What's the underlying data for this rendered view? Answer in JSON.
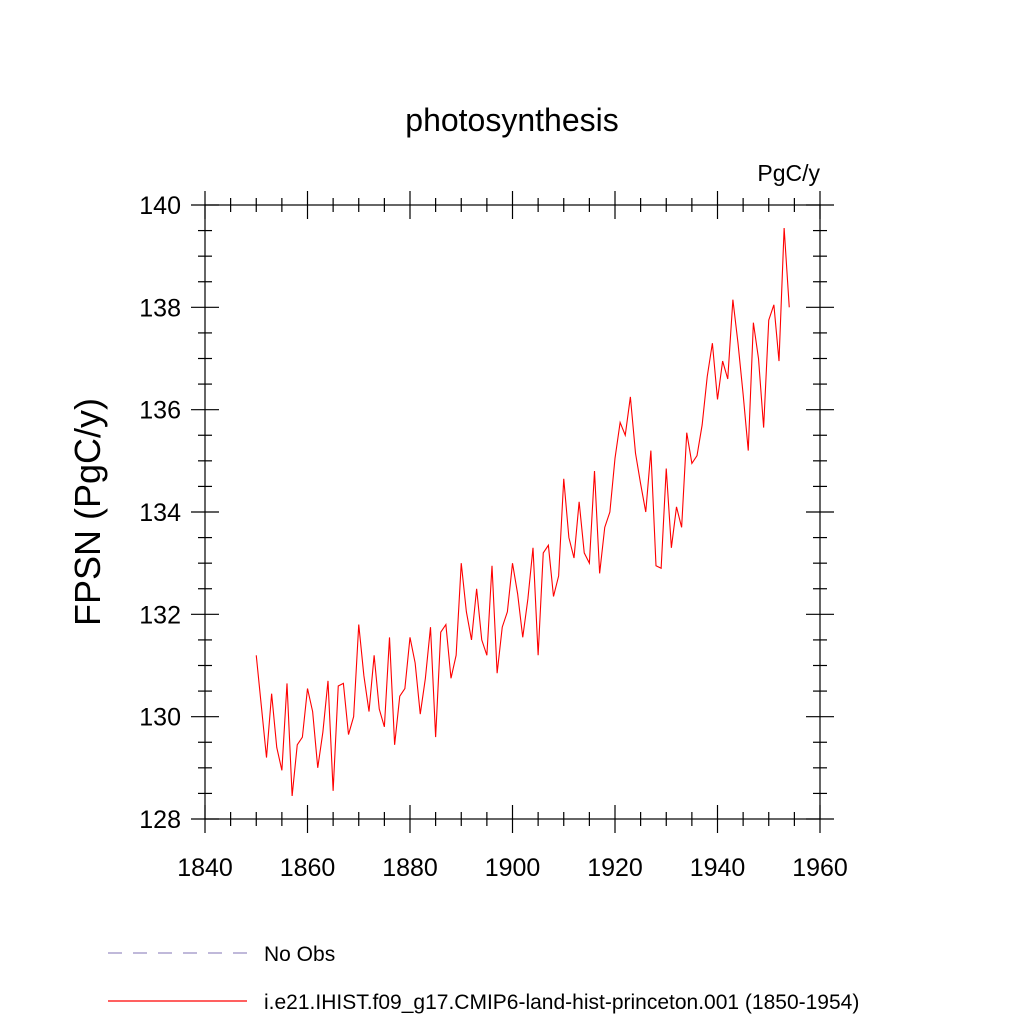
{
  "chart_data": {
    "type": "line",
    "title": "photosynthesis",
    "units": "PgC/y",
    "ylabel": "FPSN  (PgC/y)",
    "xlabel": "",
    "xlim": [
      1840,
      1960
    ],
    "ylim": [
      128,
      140
    ],
    "x_ticks": [
      1840,
      1860,
      1880,
      1900,
      1920,
      1940,
      1960
    ],
    "y_ticks": [
      128,
      130,
      132,
      134,
      136,
      138,
      140
    ],
    "grid": false,
    "legend_position": "bottom-left",
    "legend": [
      {
        "label": "No Obs",
        "color": "#9a8fc4",
        "style": "dashed"
      },
      {
        "label": "i.e21.IHIST.f09_g17.CMIP6-land-hist-princeton.001 (1850-1954)",
        "color": "#ff0000",
        "style": "solid"
      }
    ],
    "series": [
      {
        "name": "i.e21.IHIST.f09_g17.CMIP6-land-hist-princeton.001 (1850-1954)",
        "color": "#ff0000",
        "x": [
          1850,
          1851,
          1852,
          1853,
          1854,
          1855,
          1856,
          1857,
          1858,
          1859,
          1860,
          1861,
          1862,
          1863,
          1864,
          1865,
          1866,
          1867,
          1868,
          1869,
          1870,
          1871,
          1872,
          1873,
          1874,
          1875,
          1876,
          1877,
          1878,
          1879,
          1880,
          1881,
          1882,
          1883,
          1884,
          1885,
          1886,
          1887,
          1888,
          1889,
          1890,
          1891,
          1892,
          1893,
          1894,
          1895,
          1896,
          1897,
          1898,
          1899,
          1900,
          1901,
          1902,
          1903,
          1904,
          1905,
          1906,
          1907,
          1908,
          1909,
          1910,
          1911,
          1912,
          1913,
          1914,
          1915,
          1916,
          1917,
          1918,
          1919,
          1920,
          1921,
          1922,
          1923,
          1924,
          1925,
          1926,
          1927,
          1928,
          1929,
          1930,
          1931,
          1932,
          1933,
          1934,
          1935,
          1936,
          1937,
          1938,
          1939,
          1940,
          1941,
          1942,
          1943,
          1944,
          1945,
          1946,
          1947,
          1948,
          1949,
          1950,
          1951,
          1952,
          1953,
          1954
        ],
        "y": [
          131.2,
          130.2,
          129.2,
          130.45,
          129.4,
          128.95,
          130.65,
          128.45,
          129.45,
          129.6,
          130.55,
          130.1,
          129.0,
          129.7,
          130.7,
          128.55,
          130.6,
          130.65,
          129.65,
          130.0,
          131.8,
          130.8,
          130.1,
          131.2,
          130.15,
          129.8,
          131.55,
          129.45,
          130.4,
          130.55,
          131.55,
          131.05,
          130.05,
          130.75,
          131.75,
          129.6,
          131.65,
          131.8,
          130.75,
          131.2,
          133.0,
          132.05,
          131.5,
          132.5,
          131.5,
          131.2,
          132.95,
          130.85,
          131.75,
          132.05,
          133.0,
          132.4,
          131.55,
          132.3,
          133.3,
          131.2,
          133.2,
          133.35,
          132.35,
          132.75,
          134.65,
          133.5,
          133.1,
          134.2,
          133.2,
          133.0,
          134.8,
          132.8,
          133.7,
          134.0,
          135.05,
          135.75,
          135.5,
          136.25,
          135.15,
          134.55,
          134.0,
          135.2,
          132.95,
          132.9,
          134.85,
          133.3,
          134.1,
          133.7,
          135.55,
          134.95,
          135.1,
          135.7,
          136.65,
          137.3,
          136.2,
          136.95,
          136.6,
          138.15,
          137.3,
          136.3,
          135.2,
          137.7,
          137.0,
          135.65,
          137.75,
          138.05,
          136.95,
          139.55,
          138.0
        ]
      }
    ]
  }
}
